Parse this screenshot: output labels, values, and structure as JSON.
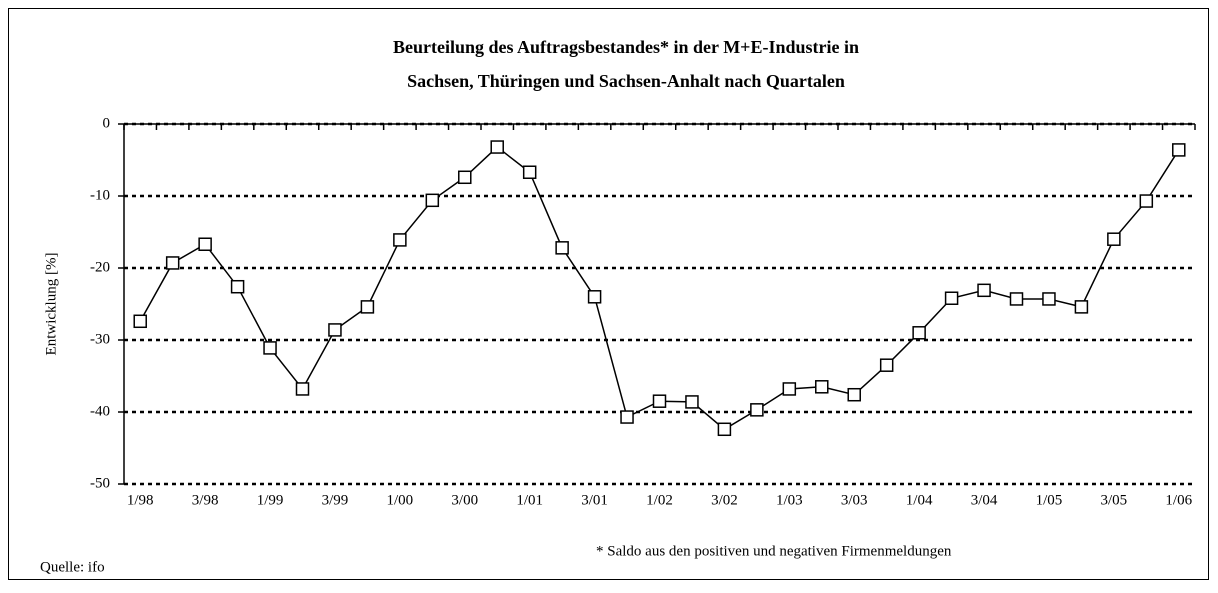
{
  "chart_data": {
    "type": "line",
    "title": [
      "Beurteilung des Auftragsbestandes* in der M+E-Industrie in",
      "Sachsen, Thüringen und Sachsen-Anhalt nach Quartalen"
    ],
    "y_label": "Entwicklung [%]",
    "source": "Quelle: ifo",
    "footnote": "* Saldo aus den positiven und negativen Firmenmeldungen",
    "categories": [
      "1/98",
      null,
      "3/98",
      null,
      "1/99",
      null,
      "3/99",
      null,
      "1/00",
      null,
      "3/00",
      null,
      "1/01",
      null,
      "3/01",
      null,
      "1/02",
      null,
      "3/02",
      null,
      "1/03",
      null,
      "3/03",
      null,
      "1/04",
      null,
      "3/04",
      null,
      "1/05",
      null,
      "3/05",
      null,
      "1/06"
    ],
    "values": [
      -27.4,
      -19.3,
      -16.7,
      -22.6,
      -31.1,
      -36.8,
      -28.6,
      -25.4,
      -16.1,
      -10.6,
      -7.4,
      -3.2,
      -6.7,
      -17.2,
      -24.0,
      -40.7,
      -38.5,
      -38.6,
      -42.4,
      -39.7,
      -36.8,
      -36.5,
      -37.6,
      -33.5,
      -29.0,
      -24.2,
      -23.1,
      -24.3,
      -24.3,
      -25.4,
      -16.0,
      -10.7,
      -3.6
    ],
    "color": "#000000",
    "ylim": [
      -50,
      0
    ],
    "yticks": [
      -50,
      -40,
      -30,
      -20,
      -10,
      0
    ],
    "grid": true
  }
}
